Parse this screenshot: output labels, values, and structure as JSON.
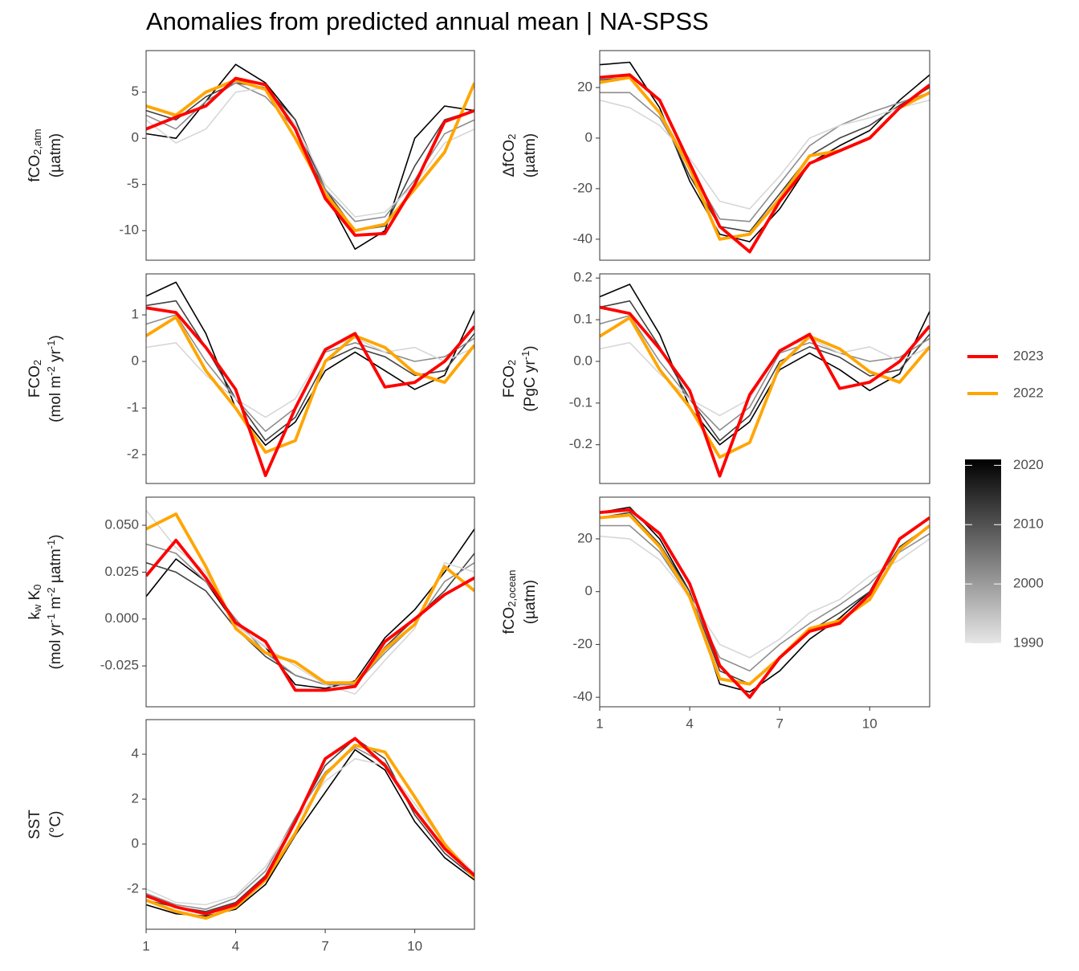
{
  "title": "Anomalies from predicted annual mean | NA-SPSS",
  "colorbar": {
    "lim": [
      1990,
      2021
    ],
    "ticks": [
      1990,
      2000,
      2010,
      2020
    ],
    "colors": [
      "#e6e6e6",
      "#000000"
    ]
  },
  "chart_data": [
    {
      "type": "line",
      "ylabel": [
        [
          {
            "t": "fCO"
          },
          {
            "sub": "2,atm"
          }
        ],
        [
          {
            "t": "(µatm)"
          }
        ]
      ],
      "x": [
        1,
        2,
        3,
        4,
        5,
        6,
        7,
        8,
        9,
        10,
        11,
        12
      ],
      "xlim": [
        1,
        12
      ],
      "ylim": [
        -13.2,
        9.5
      ],
      "yticks": [
        -10,
        -5,
        0,
        5
      ],
      "series": [
        {
          "name": "2023",
          "color": "#ff0000",
          "values": [
            1,
            2.3,
            3.5,
            6.5,
            5.8,
            1,
            -6.5,
            -10.5,
            -10.3,
            -5,
            1.8,
            3
          ]
        },
        {
          "name": "2022",
          "color": "#ffa500",
          "values": [
            3.5,
            2.5,
            5,
            6.3,
            5.3,
            0,
            -6,
            -10,
            -9.3,
            -5.5,
            -1.5,
            6
          ]
        },
        {
          "year": 1992,
          "values": [
            2,
            -0.5,
            1,
            5,
            5.5,
            1.5,
            -5,
            -8.5,
            -8,
            -5,
            -0.5,
            1
          ]
        },
        {
          "year": 2002,
          "values": [
            2.5,
            1,
            4,
            6,
            4.5,
            1,
            -5.5,
            -9,
            -8.5,
            -4.5,
            0.5,
            2
          ]
        },
        {
          "year": 2012,
          "values": [
            3,
            2,
            4.5,
            6,
            5.5,
            2,
            -5.5,
            -10,
            -9.5,
            -3,
            2,
            3
          ]
        },
        {
          "year": 2021,
          "values": [
            0.5,
            0,
            4,
            8,
            6,
            2,
            -6,
            -12,
            -10,
            0,
            3.5,
            3
          ]
        }
      ]
    },
    {
      "type": "line",
      "ylabel": [
        [
          {
            "t": "ΔfCO"
          },
          {
            "sub": "2"
          }
        ],
        [
          {
            "t": "(µatm)"
          }
        ]
      ],
      "x": [
        1,
        2,
        3,
        4,
        5,
        6,
        7,
        8,
        9,
        10,
        11,
        12
      ],
      "xlim": [
        1,
        12
      ],
      "ylim": [
        -48.3,
        34.6
      ],
      "yticks": [
        -40,
        -20,
        0,
        20
      ],
      "series": [
        {
          "name": "2023",
          "color": "#ff0000",
          "values": [
            24,
            25,
            15,
            -10,
            -35,
            -45,
            -25,
            -10,
            -5,
            0,
            12,
            21
          ]
        },
        {
          "name": "2022",
          "color": "#ffa500",
          "values": [
            22,
            24,
            10,
            -12,
            -40,
            -38,
            -24,
            -7,
            -5,
            0,
            12,
            18
          ]
        },
        {
          "year": 1992,
          "values": [
            15,
            12,
            5,
            -8,
            -25,
            -28,
            -15,
            0,
            5,
            8,
            12,
            15
          ]
        },
        {
          "year": 2002,
          "values": [
            18,
            18,
            8,
            -12,
            -32,
            -33,
            -18,
            -3,
            5,
            10,
            14,
            18
          ]
        },
        {
          "year": 2012,
          "values": [
            23,
            24,
            10,
            -15,
            -35,
            -37,
            -22,
            -7,
            0,
            5,
            13,
            20
          ]
        },
        {
          "year": 2021,
          "values": [
            29,
            30,
            12,
            -17,
            -38,
            -41,
            -28,
            -10,
            -3,
            3,
            15,
            25
          ]
        }
      ]
    },
    {
      "type": "line",
      "ylabel": [
        [
          {
            "t": "FCO"
          },
          {
            "sub": "2"
          }
        ],
        [
          {
            "t": "(mol m"
          },
          {
            "sup": "-2"
          },
          {
            "t": " yr"
          },
          {
            "sup": "-1"
          },
          {
            "t": ")"
          }
        ]
      ],
      "x": [
        1,
        2,
        3,
        4,
        5,
        6,
        7,
        8,
        9,
        10,
        11,
        12
      ],
      "xlim": [
        1,
        12
      ],
      "ylim": [
        -2.62,
        1.88
      ],
      "yticks": [
        -2,
        -1,
        0,
        1
      ],
      "series": [
        {
          "name": "2023",
          "color": "#ff0000",
          "values": [
            1.15,
            1.05,
            0.3,
            -0.6,
            -2.45,
            -1.0,
            0.25,
            0.6,
            -0.55,
            -0.45,
            0.0,
            0.75
          ]
        },
        {
          "name": "2022",
          "color": "#ffa500",
          "values": [
            0.55,
            0.95,
            -0.2,
            -1.0,
            -1.95,
            -1.7,
            0.0,
            0.55,
            0.3,
            -0.25,
            -0.45,
            0.35
          ]
        },
        {
          "year": 1992,
          "values": [
            0.3,
            0.4,
            -0.3,
            -0.8,
            -1.2,
            -0.8,
            0.3,
            0.5,
            0.2,
            0.3,
            0.0,
            0.3
          ]
        },
        {
          "year": 2002,
          "values": [
            0.8,
            1.0,
            0.0,
            -0.8,
            -1.5,
            -1.0,
            0.2,
            0.4,
            0.2,
            0.0,
            0.1,
            0.5
          ]
        },
        {
          "year": 2012,
          "values": [
            1.2,
            1.3,
            0.3,
            -0.8,
            -1.7,
            -1.2,
            0.0,
            0.3,
            0.1,
            -0.3,
            -0.2,
            0.6
          ]
        },
        {
          "year": 2021,
          "values": [
            1.4,
            1.7,
            0.6,
            -1.0,
            -1.8,
            -1.3,
            -0.2,
            0.2,
            -0.2,
            -0.6,
            -0.3,
            1.1
          ]
        }
      ]
    },
    {
      "type": "line",
      "ylabel": [
        [
          {
            "t": "FCO"
          },
          {
            "sub": "2"
          }
        ],
        [
          {
            "t": "(PgC yr"
          },
          {
            "sup": "-1"
          },
          {
            "t": ")"
          }
        ]
      ],
      "x": [
        1,
        2,
        3,
        4,
        5,
        6,
        7,
        8,
        9,
        10,
        11,
        12
      ],
      "xlim": [
        1,
        12
      ],
      "ylim": [
        -0.293,
        0.21
      ],
      "yticks": [
        -0.2,
        -0.1,
        {
          "value": 0,
          "label": "0.0"
        },
        0.1,
        0.2
      ],
      "series": [
        {
          "name": "2023",
          "color": "#ff0000",
          "values": [
            0.13,
            0.115,
            0.03,
            -0.07,
            -0.275,
            -0.08,
            0.025,
            0.065,
            -0.065,
            -0.05,
            0.0,
            0.085
          ]
        },
        {
          "name": "2022",
          "color": "#ffa500",
          "values": [
            0.06,
            0.105,
            -0.02,
            -0.11,
            -0.23,
            -0.195,
            -0.01,
            0.06,
            0.03,
            -0.025,
            -0.05,
            0.035
          ]
        },
        {
          "year": 1992,
          "values": [
            0.03,
            0.045,
            -0.03,
            -0.09,
            -0.13,
            -0.09,
            0.03,
            0.055,
            0.02,
            0.035,
            0.0,
            0.035
          ]
        },
        {
          "year": 2002,
          "values": [
            0.09,
            0.11,
            0.0,
            -0.09,
            -0.165,
            -0.11,
            0.02,
            0.045,
            0.02,
            0.0,
            0.01,
            0.055
          ]
        },
        {
          "year": 2012,
          "values": [
            0.13,
            0.145,
            0.035,
            -0.09,
            -0.19,
            -0.13,
            0.0,
            0.035,
            0.01,
            -0.035,
            -0.02,
            0.065
          ]
        },
        {
          "year": 2021,
          "values": [
            0.155,
            0.185,
            0.065,
            -0.11,
            -0.2,
            -0.145,
            -0.02,
            0.02,
            -0.02,
            -0.07,
            -0.03,
            0.12
          ]
        }
      ]
    },
    {
      "type": "line",
      "ylabel": [
        [
          {
            "t": "k"
          },
          {
            "sub": "w"
          },
          {
            "t": " K"
          },
          {
            "sub": "0"
          }
        ],
        [
          {
            "t": "(mol yr"
          },
          {
            "sup": "-1"
          },
          {
            "t": " m"
          },
          {
            "sup": "-2"
          },
          {
            "t": " µatm"
          },
          {
            "sup": "-1"
          },
          {
            "t": ")"
          }
        ]
      ],
      "x": [
        1,
        2,
        3,
        4,
        5,
        6,
        7,
        8,
        9,
        10,
        11,
        12
      ],
      "xlim": [
        1,
        12
      ],
      "ylim": [
        -0.0468,
        0.065
      ],
      "yticks": [
        -0.025,
        {
          "value": 0,
          "label": "0.000"
        },
        0.025,
        {
          "value": 0.05,
          "label": "0.050"
        }
      ],
      "series": [
        {
          "name": "2023",
          "color": "#ff0000",
          "values": [
            0.023,
            0.042,
            0.022,
            -0.002,
            -0.012,
            -0.038,
            -0.038,
            -0.036,
            -0.012,
            0.0,
            0.013,
            0.022
          ]
        },
        {
          "name": "2022",
          "color": "#ffa500",
          "values": [
            0.048,
            0.056,
            0.028,
            -0.005,
            -0.018,
            -0.023,
            -0.034,
            -0.034,
            -0.016,
            -0.003,
            0.028,
            0.015
          ]
        },
        {
          "year": 1992,
          "values": [
            0.058,
            0.038,
            0.025,
            -0.003,
            -0.015,
            -0.025,
            -0.035,
            -0.04,
            -0.022,
            -0.005,
            0.03,
            0.025
          ]
        },
        {
          "year": 2002,
          "values": [
            0.04,
            0.035,
            0.02,
            0.0,
            -0.018,
            -0.03,
            -0.035,
            -0.035,
            -0.018,
            -0.003,
            0.02,
            0.03
          ]
        },
        {
          "year": 2012,
          "values": [
            0.03,
            0.025,
            0.015,
            -0.005,
            -0.02,
            -0.03,
            -0.035,
            -0.035,
            -0.015,
            0.0,
            0.015,
            0.035
          ]
        },
        {
          "year": 2021,
          "values": [
            0.012,
            0.032,
            0.02,
            -0.003,
            -0.015,
            -0.035,
            -0.037,
            -0.033,
            -0.01,
            0.005,
            0.025,
            0.048
          ]
        }
      ]
    },
    {
      "type": "line",
      "ylabel": [
        [
          {
            "t": "fCO"
          },
          {
            "sub": "2,ocean"
          }
        ],
        [
          {
            "t": "(µatm)"
          }
        ]
      ],
      "x": [
        1,
        2,
        3,
        4,
        5,
        6,
        7,
        8,
        9,
        10,
        11,
        12
      ],
      "xlim": [
        1,
        12
      ],
      "xticks": [
        1,
        4,
        7,
        10
      ],
      "ylim": [
        -43.6,
        35.8
      ],
      "yticks": [
        -40,
        -20,
        0,
        20
      ],
      "series": [
        {
          "name": "2023",
          "color": "#ff0000",
          "values": [
            30,
            31,
            22,
            3,
            -28,
            -40,
            -25,
            -15,
            -12,
            -1,
            20,
            28
          ]
        },
        {
          "name": "2022",
          "color": "#ffa500",
          "values": [
            28,
            29,
            17,
            -2,
            -33,
            -35,
            -25,
            -14,
            -11,
            -3,
            16,
            25
          ]
        },
        {
          "year": 1992,
          "values": [
            21,
            20,
            12,
            -2,
            -20,
            -25,
            -18,
            -8,
            -3,
            6,
            12,
            20
          ]
        },
        {
          "year": 2002,
          "values": [
            25,
            25,
            15,
            -2,
            -25,
            -30,
            -20,
            -12,
            -5,
            3,
            15,
            22
          ]
        },
        {
          "year": 2012,
          "values": [
            28,
            30,
            18,
            0,
            -30,
            -35,
            -25,
            -15,
            -8,
            0,
            17,
            25
          ]
        },
        {
          "year": 2021,
          "values": [
            30,
            32,
            20,
            0,
            -35,
            -38,
            -30,
            -18,
            -10,
            0,
            20,
            28
          ]
        }
      ]
    },
    {
      "type": "line",
      "ylabel": [
        [
          {
            "t": "SST"
          }
        ],
        [
          {
            "t": "(°C)"
          }
        ]
      ],
      "x": [
        1,
        2,
        3,
        4,
        5,
        6,
        7,
        8,
        9,
        10,
        11,
        12
      ],
      "xlim": [
        1,
        12
      ],
      "xticks": [
        1,
        4,
        7,
        10
      ],
      "ylim": [
        -3.79,
        5.54
      ],
      "yticks": [
        -2,
        0,
        2,
        4
      ],
      "series": [
        {
          "name": "2023",
          "color": "#ff0000",
          "values": [
            -2.3,
            -2.8,
            -3.1,
            -2.7,
            -1.5,
            1.0,
            3.8,
            4.7,
            3.5,
            1.5,
            -0.2,
            -1.4
          ]
        },
        {
          "name": "2022",
          "color": "#ffa500",
          "values": [
            -2.5,
            -3.0,
            -3.3,
            -2.8,
            -1.6,
            0.5,
            3.1,
            4.4,
            4.1,
            2.1,
            0.0,
            -1.5
          ]
        },
        {
          "year": 1992,
          "values": [
            -2.0,
            -2.6,
            -2.7,
            -2.3,
            -1.0,
            1.0,
            2.8,
            3.8,
            3.5,
            1.8,
            0.0,
            -1.3
          ]
        },
        {
          "year": 2002,
          "values": [
            -2.2,
            -2.7,
            -2.9,
            -2.4,
            -1.2,
            1.2,
            3.2,
            4.3,
            3.6,
            1.5,
            -0.2,
            -1.4
          ]
        },
        {
          "year": 2012,
          "values": [
            -2.5,
            -2.8,
            -3.0,
            -2.6,
            -1.4,
            1.1,
            3.5,
            4.7,
            3.8,
            1.3,
            -0.4,
            -1.5
          ]
        },
        {
          "year": 2021,
          "values": [
            -2.7,
            -3.1,
            -3.2,
            -2.9,
            -1.8,
            0.4,
            2.3,
            4.2,
            3.3,
            1.0,
            -0.6,
            -1.6
          ]
        }
      ]
    }
  ]
}
